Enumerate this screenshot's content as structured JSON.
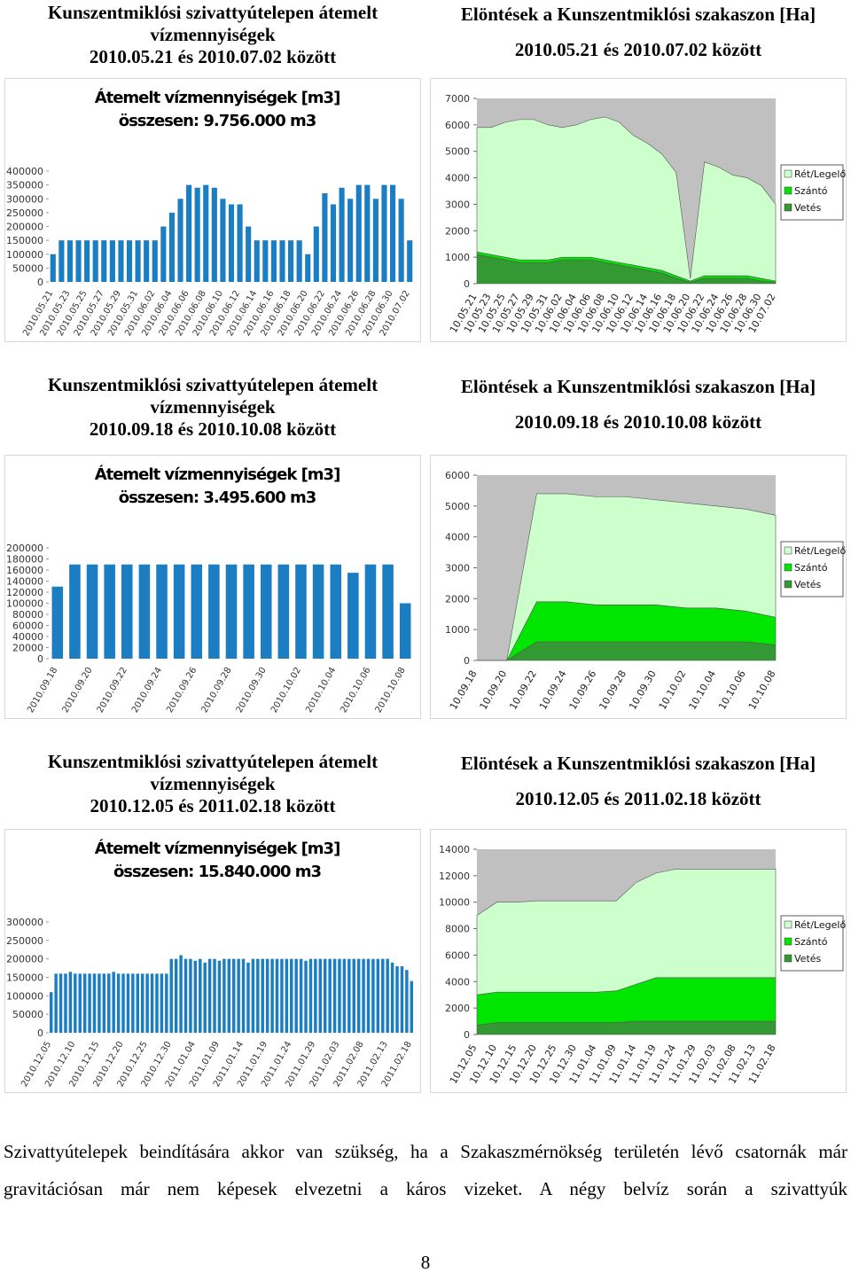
{
  "headings": [
    {
      "left": [
        "Kunszentmiklósi szivattyútelepen átemelt",
        "vízmennyiségek",
        "2010.05.21 és 2010.07.02 között"
      ],
      "right": [
        "Elöntések a Kunszentmiklósi szakaszon [Ha]",
        "2010.05.21 és 2010.07.02 között"
      ]
    },
    {
      "left": [
        "Kunszentmiklósi szivattyútelepen átemelt",
        "vízmennyiségek",
        "2010.09.18 és 2010.10.08 között"
      ],
      "right": [
        "Elöntések a Kunszentmiklósi szakaszon [Ha]",
        "2010.09.18 és 2010.10.08 között"
      ]
    },
    {
      "left": [
        "Kunszentmiklósi szivattyútelepen átemelt",
        "vízmennyiségek",
        "2010.12.05 és 2011.02.18 között"
      ],
      "right": [
        "Elöntések a Kunszentmiklósi szakaszon [Ha]",
        "2010.12.05 és 2011.02.18 között"
      ]
    }
  ],
  "chart_data": [
    {
      "type": "bar",
      "title": "Átemelt vízmennyiségek [m3]",
      "subtitle": "összesen: 9.756.000 m3",
      "color": "#1b7ec2",
      "categories": [
        "2010.05.21",
        null,
        "2010.05.23",
        null,
        "2010.05.25",
        null,
        "2010.05.27",
        null,
        "2010.05.29",
        null,
        "2010.05.31",
        null,
        "2010.06.02",
        null,
        "2010.06.04",
        null,
        "2010.06.06",
        null,
        "2010.06.08",
        null,
        "2010.06.10",
        null,
        "2010.06.12",
        null,
        "2010.06.14",
        null,
        "2010.06.16",
        null,
        "2010.06.18",
        null,
        "2010.06.20",
        null,
        "2010.06.22",
        null,
        "2010.06.24",
        null,
        "2010.06.26",
        null,
        "2010.06.28",
        null,
        "2010.06.30",
        null,
        "2010.07.02"
      ],
      "values": [
        100000,
        150000,
        150000,
        150000,
        150000,
        150000,
        150000,
        150000,
        150000,
        150000,
        150000,
        150000,
        150000,
        200000,
        250000,
        300000,
        350000,
        340000,
        350000,
        340000,
        300000,
        280000,
        280000,
        200000,
        150000,
        150000,
        150000,
        150000,
        150000,
        150000,
        100000,
        200000,
        320000,
        280000,
        340000,
        300000,
        350000,
        350000,
        300000,
        350000,
        350000,
        300000,
        150000
      ],
      "ylim": [
        0,
        400000
      ],
      "yticks": [
        0,
        50000,
        100000,
        150000,
        200000,
        250000,
        300000,
        350000,
        400000
      ]
    },
    {
      "type": "area",
      "color_background": "#c0c0c0",
      "legend": "right",
      "categories": [
        "10.05.21",
        "10.05.23",
        "10.05.25",
        "10.05.27",
        "10.05.29",
        "10.05.31",
        "10.06.02",
        "10.06.04",
        "10.06.06",
        "10.06.08",
        "10.06.10",
        "10.06.12",
        "10.06.14",
        "10.06.16",
        "10.06.18",
        "10.06.20",
        "10.06.22",
        "10.06.24",
        "10.06.26",
        "10.06.28",
        "10.06.30",
        "10.07.02"
      ],
      "series": [
        {
          "name": "Rét/Legelő",
          "color": "#ccffcc",
          "values": [
            4700,
            4800,
            5100,
            5300,
            5300,
            5100,
            4900,
            5000,
            5200,
            5400,
            5300,
            4900,
            4700,
            4400,
            3900,
            100,
            4300,
            4100,
            3800,
            3700,
            3500,
            2900
          ]
        },
        {
          "name": "Szántó",
          "color": "#00e600",
          "values": [
            100,
            100,
            100,
            100,
            100,
            100,
            100,
            100,
            100,
            100,
            100,
            100,
            100,
            100,
            100,
            50,
            100,
            100,
            100,
            100,
            100,
            50
          ]
        },
        {
          "name": "Vetés",
          "color": "#339933",
          "values": [
            1100,
            1000,
            900,
            800,
            800,
            800,
            900,
            900,
            900,
            800,
            700,
            600,
            500,
            400,
            200,
            50,
            200,
            200,
            200,
            200,
            100,
            50
          ]
        }
      ],
      "ylim": [
        0,
        7000
      ],
      "yticks": [
        0,
        1000,
        2000,
        3000,
        4000,
        5000,
        6000,
        7000
      ]
    },
    {
      "type": "bar",
      "title": "Átemelt vízmennyiségek [m3]",
      "subtitle": "összesen: 3.495.600 m3",
      "color": "#1b7ec2",
      "categories": [
        "2010.09.18",
        null,
        "2010.09.20",
        null,
        "2010.09.22",
        null,
        "2010.09.24",
        null,
        "2010.09.26",
        null,
        "2010.09.28",
        null,
        "2010.09.30",
        null,
        "2010.10.02",
        null,
        "2010.10.04",
        null,
        "2010.10.06",
        null,
        "2010.10.08"
      ],
      "values": [
        130000,
        170000,
        170000,
        170000,
        170000,
        170000,
        170000,
        170000,
        170000,
        170000,
        170000,
        170000,
        170000,
        170000,
        170000,
        170000,
        170000,
        155000,
        170000,
        170000,
        100000
      ],
      "ylim": [
        0,
        200000
      ],
      "yticks": [
        0,
        20000,
        40000,
        60000,
        80000,
        100000,
        120000,
        140000,
        160000,
        180000,
        200000
      ]
    },
    {
      "type": "area",
      "color_background": "#c0c0c0",
      "legend": "right",
      "categories": [
        "10.09.18",
        "10.09.20",
        "10.09.22",
        "10.09.24",
        "10.09.26",
        "10.09.28",
        "10.09.30",
        "10.10.02",
        "10.10.04",
        "10.10.06",
        "10.10.08"
      ],
      "series": [
        {
          "name": "Rét/Legelő",
          "color": "#ccffcc",
          "values": [
            0,
            0,
            3500,
            3500,
            3500,
            3500,
            3400,
            3400,
            3300,
            3300,
            3300
          ]
        },
        {
          "name": "Szántó",
          "color": "#00e600",
          "values": [
            0,
            0,
            1300,
            1300,
            1200,
            1200,
            1200,
            1100,
            1100,
            1000,
            900
          ]
        },
        {
          "name": "Vetés",
          "color": "#339933",
          "values": [
            0,
            0,
            600,
            600,
            600,
            600,
            600,
            600,
            600,
            600,
            500
          ]
        }
      ],
      "ylim": [
        0,
        6000
      ],
      "yticks": [
        0,
        1000,
        2000,
        3000,
        4000,
        5000,
        6000
      ]
    },
    {
      "type": "bar",
      "title": "Átemelt vízmennyiségek [m3]",
      "subtitle": "összesen: 15.840.000 m3",
      "color": "#1b7ec2",
      "categories": [
        "2010.12.05",
        null,
        null,
        null,
        null,
        "2010.12.10",
        null,
        null,
        null,
        null,
        "2010.12.15",
        null,
        null,
        null,
        null,
        "2010.12.20",
        null,
        null,
        null,
        null,
        "2010.12.25",
        null,
        null,
        null,
        null,
        "2010.12.30",
        null,
        null,
        null,
        null,
        "2011.01.04",
        null,
        null,
        null,
        null,
        "2011.01.09",
        null,
        null,
        null,
        null,
        "2011.01.14",
        null,
        null,
        null,
        null,
        "2011.01.19",
        null,
        null,
        null,
        null,
        "2011.01.24",
        null,
        null,
        null,
        null,
        "2011.01.29",
        null,
        null,
        null,
        null,
        "2011.02.03",
        null,
        null,
        null,
        null,
        "2011.02.08",
        null,
        null,
        null,
        null,
        "2011.02.13",
        null,
        null,
        null,
        null,
        "2011.02.18"
      ],
      "values": [
        110000,
        160000,
        160000,
        160000,
        165000,
        160000,
        160000,
        160000,
        160000,
        160000,
        160000,
        160000,
        160000,
        165000,
        160000,
        160000,
        160000,
        160000,
        160000,
        160000,
        160000,
        160000,
        160000,
        160000,
        160000,
        200000,
        200000,
        210000,
        200000,
        200000,
        195000,
        200000,
        190000,
        200000,
        200000,
        195000,
        200000,
        200000,
        200000,
        200000,
        200000,
        190000,
        200000,
        200000,
        200000,
        200000,
        200000,
        200000,
        200000,
        200000,
        200000,
        200000,
        200000,
        195000,
        200000,
        200000,
        200000,
        200000,
        200000,
        200000,
        200000,
        200000,
        200000,
        200000,
        200000,
        200000,
        200000,
        200000,
        200000,
        200000,
        200000,
        190000,
        180000,
        180000,
        170000,
        140000
      ],
      "ylim": [
        0,
        300000
      ],
      "yticks": [
        0,
        50000,
        100000,
        150000,
        200000,
        250000,
        300000
      ]
    },
    {
      "type": "area",
      "color_background": "#c0c0c0",
      "legend": "right",
      "categories": [
        "10.12.05",
        "10.12.10",
        "10.12.15",
        "10.12.20",
        "10.12.25",
        "10.12.30",
        "11.01.04",
        "11.01.09",
        "11.01.14",
        "11.01.19",
        "11.01.24",
        "11.01.29",
        "11.02.03",
        "11.02.08",
        "11.02.13",
        "11.02.18"
      ],
      "series": [
        {
          "name": "Rét/Legelő",
          "color": "#ccffcc",
          "values": [
            6000,
            6800,
            6800,
            6900,
            6900,
            6900,
            6900,
            6800,
            7700,
            7900,
            8200,
            8200,
            8200,
            8200,
            8200,
            8200
          ]
        },
        {
          "name": "Szántó",
          "color": "#00e600",
          "values": [
            2300,
            2300,
            2300,
            2300,
            2300,
            2300,
            2300,
            2400,
            2800,
            3300,
            3300,
            3300,
            3300,
            3300,
            3300,
            3300
          ]
        },
        {
          "name": "Vetés",
          "color": "#339933",
          "values": [
            700,
            900,
            900,
            900,
            900,
            900,
            900,
            900,
            1000,
            1000,
            1000,
            1000,
            1000,
            1000,
            1000,
            1000
          ]
        }
      ],
      "ylim": [
        0,
        14000
      ],
      "yticks": [
        0,
        2000,
        4000,
        6000,
        8000,
        10000,
        12000,
        14000
      ]
    }
  ],
  "paragraph": "Szivattyútelepek beindítására akkor van szükség, ha a Szakaszmérnökség területén lévő csatornák már gravitációsan már nem képesek elvezetni a káros vizeket. A négy belvíz során a szivattyúk",
  "page_number": "8"
}
